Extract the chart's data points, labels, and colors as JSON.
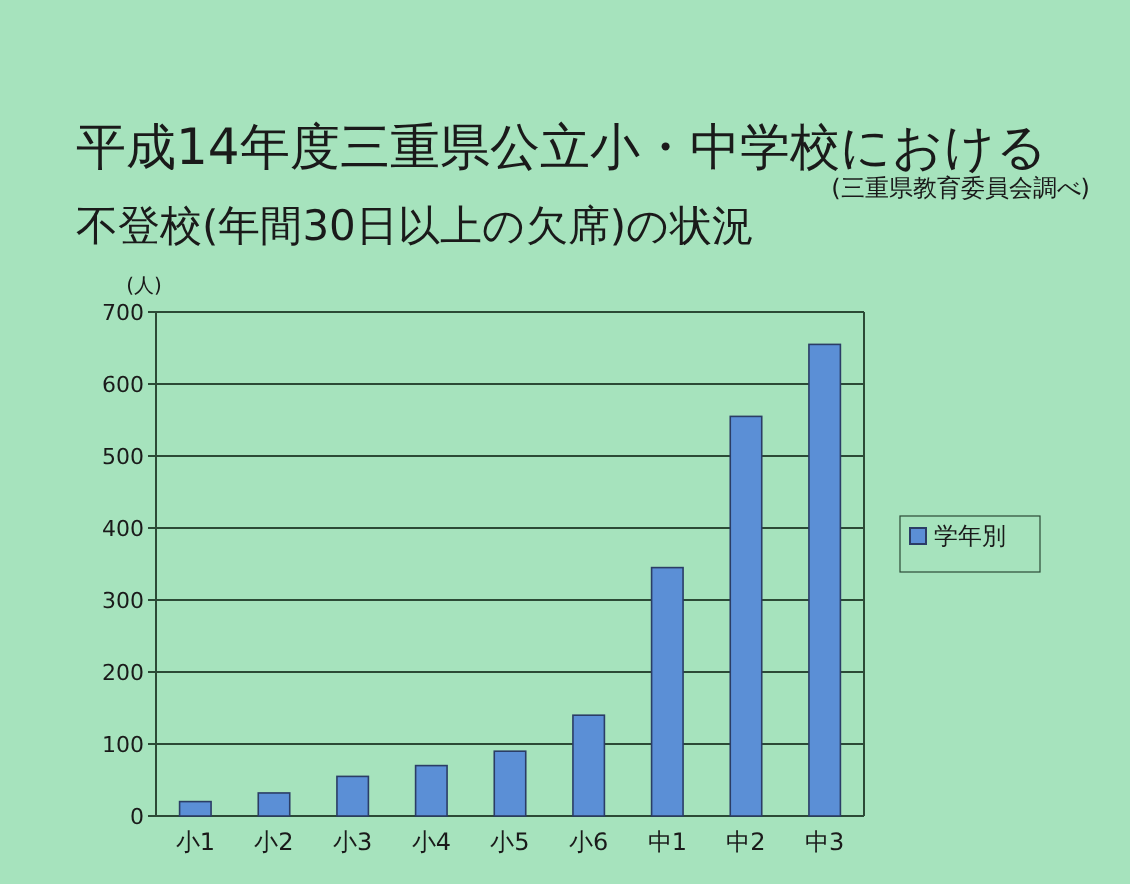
{
  "chart_data": {
    "type": "bar",
    "title": "平成14年度三重県公立小・中学校における",
    "subtitle": "不登校(年間30日以上の欠席)の状況",
    "annotations": [
      "(三重県教育委員会調べ)"
    ],
    "ylabel": "(人)",
    "categories": [
      "小1",
      "小2",
      "小3",
      "小4",
      "小5",
      "小6",
      "中1",
      "中2",
      "中3"
    ],
    "series": [
      {
        "name": "学年別",
        "color": "#5b8fd6",
        "values": [
          20,
          32,
          55,
          70,
          90,
          140,
          345,
          555,
          655
        ]
      }
    ],
    "ylim": [
      0,
      700
    ],
    "yticks": [
      0,
      100,
      200,
      300,
      400,
      500,
      600,
      700
    ],
    "grid": "y",
    "legend": "right"
  }
}
